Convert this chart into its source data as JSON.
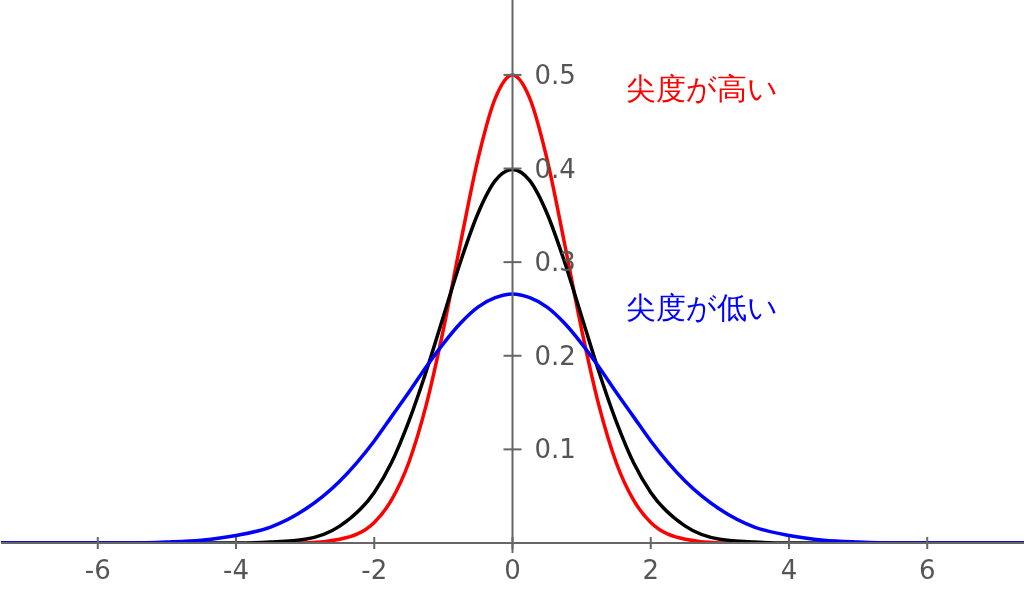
{
  "chart_data": {
    "type": "line",
    "x": [
      -7.4,
      -6,
      -5.5,
      -5,
      -4.5,
      -4,
      -3.5,
      -3,
      -2.5,
      -2,
      -1.75,
      -1.5,
      -1.25,
      -1,
      -0.75,
      -0.5,
      -0.25,
      0,
      0.25,
      0.5,
      0.75,
      1,
      1.25,
      1.5,
      1.75,
      2,
      2.5,
      3,
      3.5,
      4,
      4.5,
      5,
      5.5,
      6,
      7.4
    ],
    "series": [
      {
        "name": "尖度が高い",
        "color": "#ff0000",
        "values": [
          null,
          null,
          null,
          null,
          null,
          null,
          0,
          0,
          0.004,
          0.022,
          0.046,
          0.086,
          0.147,
          0.228,
          0.321,
          0.41,
          0.475,
          0.5,
          0.475,
          0.41,
          0.321,
          0.228,
          0.147,
          0.086,
          0.046,
          0.022,
          0.004,
          0,
          0,
          null,
          null,
          null,
          null,
          null,
          null
        ]
      },
      {
        "color": "#000000",
        "values": [
          0,
          0,
          0,
          0,
          0,
          0,
          0.001,
          0.004,
          0.018,
          0.054,
          0.086,
          0.13,
          0.183,
          0.242,
          0.301,
          0.352,
          0.387,
          0.399,
          0.387,
          0.352,
          0.301,
          0.242,
          0.183,
          0.13,
          0.086,
          0.054,
          0.018,
          0.004,
          0.001,
          0,
          0,
          0,
          0,
          0,
          0
        ]
      },
      {
        "name": "尖度が低い",
        "color": "#0000ff",
        "values": [
          0,
          0,
          0,
          0.001,
          0.003,
          0.008,
          0.017,
          0.036,
          0.066,
          0.109,
          0.135,
          0.161,
          0.188,
          0.213,
          0.235,
          0.252,
          0.262,
          0.266,
          0.262,
          0.252,
          0.235,
          0.213,
          0.188,
          0.161,
          0.135,
          0.109,
          0.066,
          0.036,
          0.017,
          0.008,
          0.003,
          0.001,
          0,
          0,
          0
        ]
      }
    ],
    "xlim": [
      -7.4,
      7.4
    ],
    "xticks": [
      -6,
      -4,
      -2,
      0,
      2,
      4,
      6
    ],
    "ylim": [
      0,
      0.58
    ],
    "yticks": [
      0.1,
      0.2,
      0.3,
      0.4,
      0.5
    ],
    "grid": false,
    "marker": "none",
    "line_style": "solid"
  }
}
